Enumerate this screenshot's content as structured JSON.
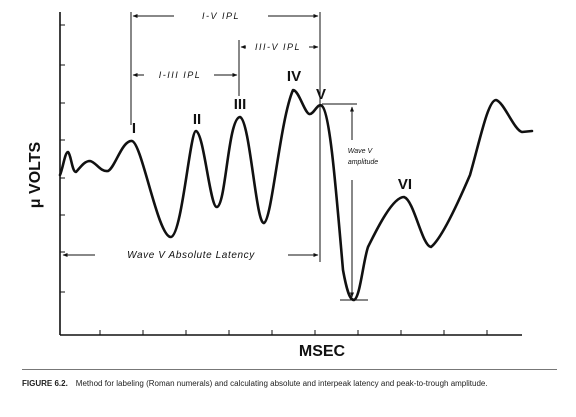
{
  "peaks": {
    "I": "I",
    "II": "II",
    "III": "III",
    "IV": "IV",
    "V": "V",
    "VI": "VI"
  },
  "intervals": {
    "i_v": "I-V IPL",
    "i_iii": "I-III IPL",
    "iii_v": "III-V IPL",
    "absolute_latency": "Wave V Absolute Latency"
  },
  "amplitude_label": {
    "line1": "Wave V",
    "line2": "amplitude"
  },
  "axes": {
    "x_title": "MSEC",
    "y_title": "μ VOLTS"
  },
  "caption": {
    "figure_label": "FIGURE 6.2.",
    "text": "Method for labeling (Roman numerals) and calculating absolute and interpeak latency and peak-to-trough amplitude."
  }
}
